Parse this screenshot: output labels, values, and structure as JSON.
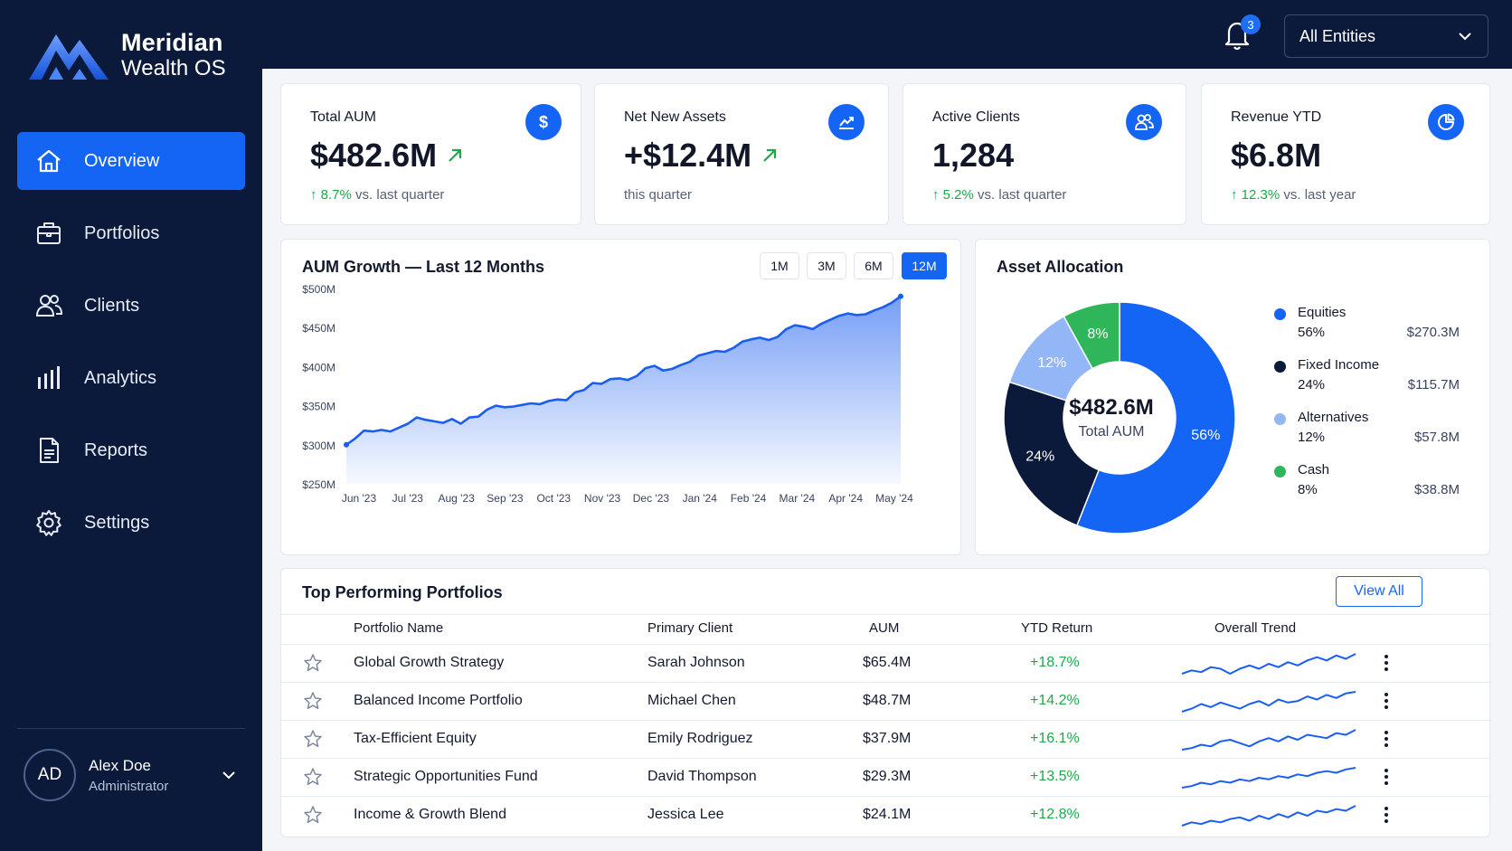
{
  "brand": {
    "name": "Meridian",
    "subtitle": "Wealth OS"
  },
  "sidebar": {
    "items": [
      {
        "label": "Overview",
        "icon": "home-icon",
        "active": true
      },
      {
        "label": "Portfolios",
        "icon": "briefcase-icon",
        "active": false
      },
      {
        "label": "Clients",
        "icon": "users-icon",
        "active": false
      },
      {
        "label": "Analytics",
        "icon": "bar-chart-icon",
        "active": false
      },
      {
        "label": "Reports",
        "icon": "document-icon",
        "active": false
      },
      {
        "label": "Settings",
        "icon": "gear-icon",
        "active": false
      }
    ],
    "user": {
      "initials": "AD",
      "name": "Alex Doe",
      "role": "Administrator"
    }
  },
  "topbar": {
    "notification_count": "3",
    "entity_select": "All Entities"
  },
  "kpis": [
    {
      "title": "Total AUM",
      "value": "$482.6M",
      "change": "8.7%",
      "change_text": "vs. last quarter",
      "icon": "dollar-icon",
      "trend_arrow": true
    },
    {
      "title": "Net New Assets",
      "value": "+$12.4M",
      "change": "",
      "change_text": "this quarter",
      "icon": "trending-up-icon",
      "trend_arrow": true
    },
    {
      "title": "Active Clients",
      "value": "1,284",
      "change": "5.2%",
      "change_text": "vs. last quarter",
      "icon": "users-icon",
      "trend_arrow": false
    },
    {
      "title": "Revenue YTD",
      "value": "$6.8M",
      "change": "12.3%",
      "change_text": "vs. last year",
      "icon": "pie-chart-icon",
      "trend_arrow": false
    }
  ],
  "growth_panel": {
    "title": "AUM Growth — Last 12 Months",
    "ranges": [
      {
        "label": "1M",
        "active": false
      },
      {
        "label": "3M",
        "active": false
      },
      {
        "label": "6M",
        "active": false
      },
      {
        "label": "12M",
        "active": true
      }
    ]
  },
  "allocation_panel": {
    "title": "Asset Allocation",
    "center_value": "$482.6M",
    "center_label": "Total AUM"
  },
  "chart_data": [
    {
      "type": "area",
      "title": "AUM Growth — Last 12 Months",
      "xlabel": "",
      "ylabel": "",
      "y_ticks": [
        "$500M",
        "$450M",
        "$400M",
        "$350M",
        "$300M",
        "$250M"
      ],
      "ylim": [
        250,
        500
      ],
      "x_ticks": [
        "Jun '23",
        "Jul '23",
        "Aug '23",
        "Sep '23",
        "Oct '23",
        "Nov '23",
        "Dec '23",
        "Jan '24",
        "Feb '24",
        "Mar '24",
        "Apr '24",
        "May '24"
      ],
      "color": "#1a5ef0",
      "values": [
        300,
        308,
        318,
        317,
        319,
        317,
        322,
        327,
        335,
        332,
        330,
        328,
        333,
        327,
        335,
        336,
        345,
        350,
        348,
        349,
        351,
        353,
        352,
        356,
        358,
        357,
        367,
        370,
        379,
        378,
        384,
        385,
        383,
        388,
        398,
        401,
        395,
        397,
        402,
        406,
        414,
        417,
        420,
        419,
        424,
        432,
        435,
        437,
        434,
        438,
        448,
        453,
        451,
        448,
        455,
        460,
        465,
        468,
        466,
        467,
        472,
        476,
        482,
        490
      ]
    },
    {
      "type": "pie",
      "title": "Asset Allocation",
      "slices": [
        {
          "name": "Equities",
          "percent": 56,
          "pct_label": "56%",
          "amount": "$270.3M",
          "color": "#1565f5"
        },
        {
          "name": "Fixed Income",
          "percent": 24,
          "pct_label": "24%",
          "amount": "$115.7M",
          "color": "#0b1a3a"
        },
        {
          "name": "Alternatives",
          "percent": 12,
          "pct_label": "12%",
          "amount": "$57.8M",
          "color": "#93b6f6"
        },
        {
          "name": "Cash",
          "percent": 8,
          "pct_label": "8%",
          "amount": "$38.8M",
          "color": "#2fb55a"
        }
      ]
    }
  ],
  "portfolios": {
    "title": "Top Performing Portfolios",
    "view_all": "View All",
    "columns": [
      "Portfolio Name",
      "Primary Client",
      "AUM",
      "YTD Return",
      "Overall Trend"
    ],
    "rows": [
      {
        "name": "Global Growth Strategy",
        "client": "Sarah Johnson",
        "aum": "$65.4M",
        "ret": "+18.7%",
        "trend": [
          3,
          5,
          4,
          7,
          6,
          3,
          6,
          8,
          6,
          9,
          7,
          10,
          8,
          11,
          13,
          11,
          14,
          12,
          15
        ]
      },
      {
        "name": "Balanced Income Portfolio",
        "client": "Michael Chen",
        "aum": "$48.7M",
        "ret": "+14.2%",
        "trend": [
          2,
          4,
          7,
          5,
          8,
          6,
          4,
          7,
          9,
          6,
          10,
          8,
          9,
          12,
          10,
          13,
          11,
          14,
          15
        ]
      },
      {
        "name": "Tax-Efficient Equity",
        "client": "Emily Rodriguez",
        "aum": "$37.9M",
        "ret": "+16.1%",
        "trend": [
          3,
          4,
          6,
          5,
          8,
          9,
          7,
          5,
          8,
          10,
          8,
          11,
          9,
          12,
          11,
          10,
          13,
          12,
          15
        ]
      },
      {
        "name": "Strategic Opportunities Fund",
        "client": "David Thompson",
        "aum": "$29.3M",
        "ret": "+13.5%",
        "trend": [
          2,
          3,
          5,
          4,
          6,
          5,
          7,
          6,
          8,
          7,
          9,
          8,
          10,
          9,
          11,
          12,
          11,
          13,
          14
        ]
      },
      {
        "name": "Income & Growth Blend",
        "client": "Jessica Lee",
        "aum": "$24.1M",
        "ret": "+12.8%",
        "trend": [
          2,
          4,
          3,
          5,
          4,
          6,
          7,
          5,
          8,
          6,
          9,
          7,
          10,
          8,
          11,
          10,
          12,
          11,
          14
        ]
      }
    ]
  }
}
